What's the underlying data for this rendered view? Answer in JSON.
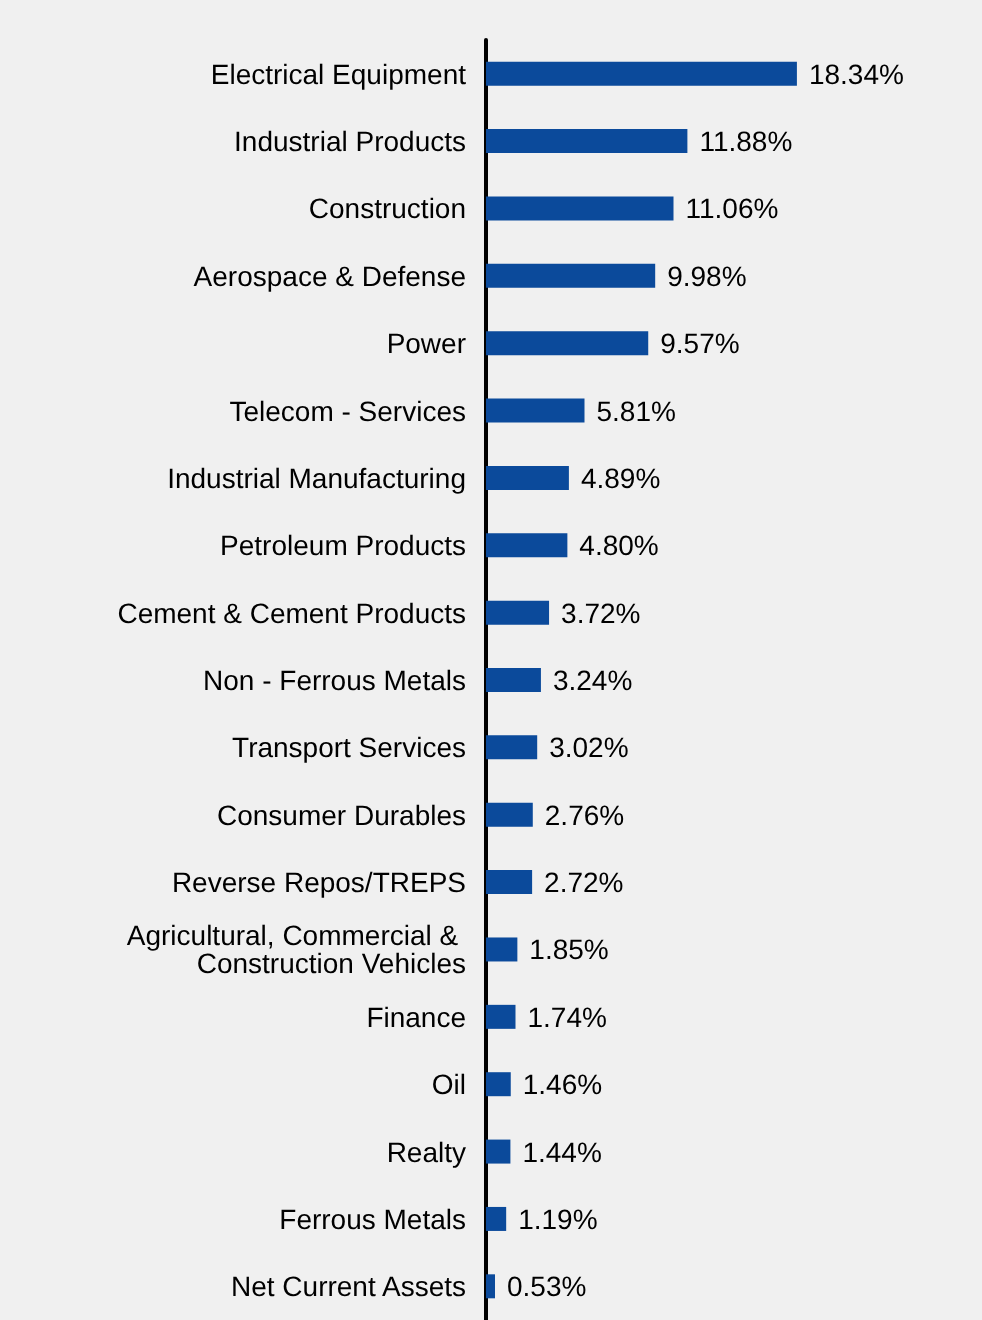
{
  "chart_data": {
    "type": "bar",
    "orientation": "horizontal",
    "categories": [
      "Electrical Equipment",
      "Industrial Products",
      "Construction",
      "Aerospace & Defense",
      "Power",
      "Telecom - Services",
      "Industrial Manufacturing",
      "Petroleum Products",
      "Cement & Cement Products",
      "Non - Ferrous Metals",
      "Transport Services",
      "Consumer Durables",
      "Reverse Repos/TREPS",
      "Agricultural, Commercial & Construction Vehicles",
      "Finance",
      "Oil",
      "Realty",
      "Ferrous Metals",
      "Net Current Assets"
    ],
    "values": [
      18.34,
      11.88,
      11.06,
      9.98,
      9.57,
      5.81,
      4.89,
      4.8,
      3.72,
      3.24,
      3.02,
      2.76,
      2.72,
      1.85,
      1.74,
      1.46,
      1.44,
      1.19,
      0.53
    ],
    "value_labels": [
      "18.34%",
      "11.88%",
      "11.06%",
      "9.98%",
      "9.57%",
      "5.81%",
      "4.89%",
      "4.80%",
      "3.72%",
      "3.24%",
      "3.02%",
      "2.76%",
      "2.72%",
      "1.85%",
      "1.74%",
      "1.46%",
      "1.44%",
      "1.19%",
      "0.53%"
    ],
    "color": "#0b4a9b"
  }
}
